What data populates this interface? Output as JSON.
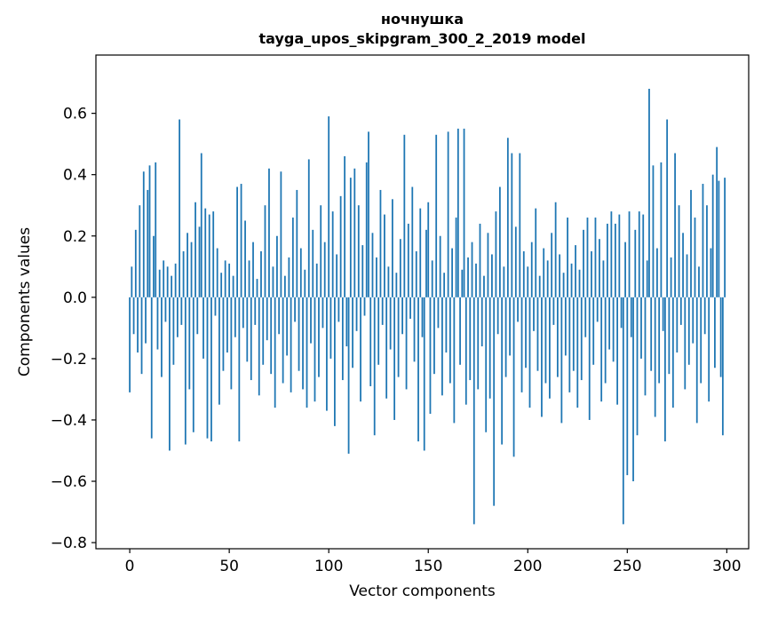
{
  "chart_data": {
    "type": "bar",
    "title": "ночнушка",
    "subtitle": "tayga_upos_skipgram_300_2_2019 model",
    "xlabel": "Vector components",
    "ylabel": "Components values",
    "bar_color": "#1f77b4",
    "n_components": 300,
    "xlim": [
      -17,
      311
    ],
    "ylim": [
      -0.82,
      0.79
    ],
    "xticks": [
      0,
      50,
      100,
      150,
      200,
      250,
      300
    ],
    "yticks": [
      -0.8,
      -0.6,
      -0.4,
      -0.2,
      0.0,
      0.2,
      0.4,
      0.6
    ],
    "grid": false,
    "legend": "none",
    "values": [
      -0.31,
      0.1,
      -0.12,
      0.22,
      -0.18,
      0.3,
      -0.25,
      0.41,
      -0.15,
      0.35,
      0.43,
      -0.46,
      0.2,
      0.44,
      -0.17,
      0.09,
      -0.26,
      0.12,
      -0.08,
      0.1,
      -0.5,
      0.07,
      -0.22,
      0.11,
      -0.13,
      0.58,
      -0.09,
      0.15,
      -0.48,
      0.21,
      -0.3,
      0.18,
      -0.44,
      0.31,
      -0.12,
      0.23,
      0.47,
      -0.2,
      0.29,
      -0.46,
      0.27,
      -0.47,
      0.28,
      -0.06,
      0.16,
      -0.35,
      0.08,
      -0.24,
      0.12,
      -0.18,
      0.11,
      -0.3,
      0.07,
      -0.13,
      0.36,
      -0.47,
      0.37,
      -0.1,
      0.25,
      -0.21,
      0.12,
      -0.27,
      0.18,
      -0.09,
      0.06,
      -0.32,
      0.15,
      -0.22,
      0.3,
      -0.14,
      0.42,
      -0.25,
      0.1,
      -0.36,
      0.2,
      -0.12,
      0.41,
      -0.28,
      0.07,
      -0.19,
      0.13,
      -0.31,
      0.26,
      -0.08,
      0.35,
      -0.24,
      0.16,
      -0.3,
      0.09,
      -0.36,
      0.45,
      -0.15,
      0.22,
      -0.34,
      0.11,
      -0.26,
      0.3,
      -0.1,
      0.18,
      -0.37,
      0.59,
      -0.2,
      0.28,
      -0.42,
      0.14,
      -0.08,
      0.33,
      -0.27,
      0.46,
      -0.16,
      -0.51,
      0.39,
      -0.23,
      0.42,
      -0.11,
      0.3,
      -0.34,
      0.17,
      -0.06,
      0.44,
      0.54,
      -0.29,
      0.21,
      -0.45,
      0.13,
      -0.22,
      0.35,
      -0.09,
      0.27,
      -0.33,
      0.1,
      -0.17,
      0.32,
      -0.4,
      0.08,
      -0.26,
      0.19,
      -0.12,
      0.53,
      -0.3,
      0.24,
      -0.07,
      0.36,
      -0.21,
      0.15,
      -0.47,
      0.29,
      -0.13,
      -0.5,
      0.22,
      0.31,
      -0.38,
      0.12,
      -0.25,
      0.53,
      -0.1,
      0.2,
      -0.32,
      0.08,
      -0.18,
      0.54,
      -0.28,
      0.16,
      -0.41,
      0.26,
      0.55,
      -0.22,
      0.09,
      0.55,
      -0.35,
      0.13,
      -0.27,
      0.18,
      -0.74,
      0.11,
      -0.3,
      0.24,
      -0.16,
      0.07,
      -0.44,
      0.21,
      -0.33,
      0.14,
      -0.68,
      0.28,
      -0.12,
      0.36,
      -0.48,
      0.1,
      -0.26,
      0.52,
      -0.19,
      0.47,
      -0.52,
      0.23,
      -0.08,
      0.47,
      -0.31,
      0.15,
      -0.23,
      0.1,
      -0.36,
      0.18,
      -0.11,
      0.29,
      -0.24,
      0.07,
      -0.39,
      0.16,
      -0.28,
      0.12,
      -0.33,
      0.21,
      -0.09,
      0.31,
      -0.26,
      0.14,
      -0.41,
      0.08,
      -0.19,
      0.26,
      -0.31,
      0.11,
      -0.24,
      0.17,
      -0.36,
      0.09,
      -0.27,
      0.22,
      -0.13,
      0.26,
      -0.4,
      0.15,
      -0.22,
      0.26,
      -0.08,
      0.19,
      -0.34,
      0.12,
      -0.28,
      0.24,
      -0.17,
      0.28,
      -0.21,
      0.24,
      -0.35,
      0.27,
      -0.1,
      -0.74,
      0.18,
      -0.58,
      0.28,
      -0.13,
      -0.6,
      0.22,
      -0.45,
      0.28,
      -0.2,
      0.27,
      -0.32,
      0.12,
      0.68,
      -0.24,
      0.43,
      -0.39,
      0.16,
      -0.28,
      0.44,
      -0.11,
      -0.47,
      0.58,
      -0.25,
      0.13,
      -0.36,
      0.47,
      -0.18,
      0.3,
      -0.09,
      0.21,
      -0.3,
      0.14,
      -0.22,
      0.35,
      -0.15,
      0.26,
      -0.41,
      0.1,
      -0.28,
      0.37,
      -0.12,
      0.3,
      -0.34,
      0.16,
      0.4,
      -0.23,
      0.49,
      0.38,
      -0.26,
      -0.45,
      0.39
    ]
  }
}
